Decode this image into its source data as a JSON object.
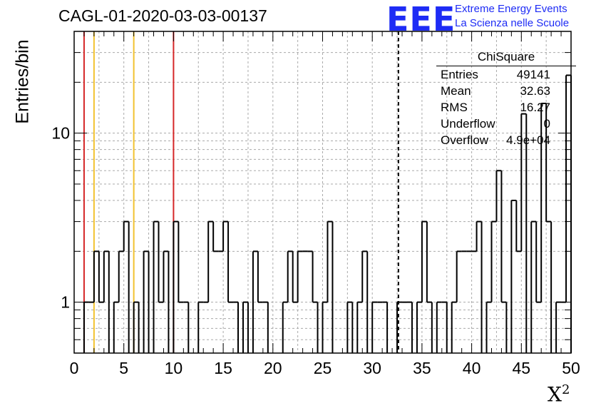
{
  "title": "CAGL-01-2020-03-03-00137",
  "logo": {
    "text": "EEE",
    "line1": "Extreme Energy Events",
    "line2": "La Scienza nelle Scuole",
    "color": "#1e2cf5"
  },
  "stats": {
    "name": "ChiSquare",
    "rows": [
      {
        "key": "Entries",
        "value": "49141"
      },
      {
        "key": "Mean",
        "value": "32.63"
      },
      {
        "key": "RMS",
        "value": "16.27"
      },
      {
        "key": "Underflow",
        "value": "0"
      },
      {
        "key": "Overflow",
        "value": "4.9e+04"
      }
    ]
  },
  "chart_data": {
    "type": "bar",
    "histogram": true,
    "title": "CAGL-01-2020-03-03-00137",
    "xlabel": "X",
    "xlabel_superscript": "2",
    "ylabel": "Entries/bin",
    "xlim": [
      0,
      50
    ],
    "ylim": [
      0.5,
      40
    ],
    "yscale": "log",
    "bin_width": 0.5,
    "x_ticks": [
      0,
      5,
      10,
      15,
      20,
      25,
      30,
      35,
      40,
      45,
      50
    ],
    "y_ticks": [
      1,
      10
    ],
    "grid": true,
    "bins": [
      {
        "x": 1.0,
        "y": 1
      },
      {
        "x": 1.5,
        "y": 1
      },
      {
        "x": 2.0,
        "y": 2
      },
      {
        "x": 2.5,
        "y": 1
      },
      {
        "x": 3.0,
        "y": 2
      },
      {
        "x": 4.0,
        "y": 1
      },
      {
        "x": 4.5,
        "y": 2
      },
      {
        "x": 5.0,
        "y": 3
      },
      {
        "x": 6.0,
        "y": 1
      },
      {
        "x": 7.0,
        "y": 2
      },
      {
        "x": 8.0,
        "y": 3
      },
      {
        "x": 8.5,
        "y": 1
      },
      {
        "x": 9.0,
        "y": 2
      },
      {
        "x": 10.0,
        "y": 3
      },
      {
        "x": 10.5,
        "y": 1
      },
      {
        "x": 11.0,
        "y": 1
      },
      {
        "x": 12.5,
        "y": 1
      },
      {
        "x": 13.0,
        "y": 1
      },
      {
        "x": 13.5,
        "y": 3
      },
      {
        "x": 14.0,
        "y": 2
      },
      {
        "x": 14.5,
        "y": 2
      },
      {
        "x": 15.0,
        "y": 3
      },
      {
        "x": 15.5,
        "y": 1
      },
      {
        "x": 16.0,
        "y": 1
      },
      {
        "x": 17.0,
        "y": 1
      },
      {
        "x": 18.0,
        "y": 2
      },
      {
        "x": 18.5,
        "y": 1
      },
      {
        "x": 19.0,
        "y": 1
      },
      {
        "x": 21.0,
        "y": 1
      },
      {
        "x": 21.5,
        "y": 2
      },
      {
        "x": 22.0,
        "y": 1
      },
      {
        "x": 22.5,
        "y": 2
      },
      {
        "x": 23.0,
        "y": 2
      },
      {
        "x": 23.5,
        "y": 2
      },
      {
        "x": 24.0,
        "y": 1
      },
      {
        "x": 25.0,
        "y": 1
      },
      {
        "x": 25.5,
        "y": 3
      },
      {
        "x": 27.5,
        "y": 1
      },
      {
        "x": 28.5,
        "y": 1
      },
      {
        "x": 29.0,
        "y": 2
      },
      {
        "x": 30.0,
        "y": 1
      },
      {
        "x": 30.5,
        "y": 1
      },
      {
        "x": 31.0,
        "y": 1
      },
      {
        "x": 32.5,
        "y": 1
      },
      {
        "x": 33.0,
        "y": 1
      },
      {
        "x": 33.5,
        "y": 1
      },
      {
        "x": 34.5,
        "y": 1
      },
      {
        "x": 35.0,
        "y": 3
      },
      {
        "x": 35.5,
        "y": 1
      },
      {
        "x": 36.5,
        "y": 1
      },
      {
        "x": 37.0,
        "y": 1
      },
      {
        "x": 38.0,
        "y": 1
      },
      {
        "x": 38.5,
        "y": 2
      },
      {
        "x": 39.0,
        "y": 2
      },
      {
        "x": 39.5,
        "y": 2
      },
      {
        "x": 40.0,
        "y": 2
      },
      {
        "x": 40.5,
        "y": 3
      },
      {
        "x": 41.5,
        "y": 1
      },
      {
        "x": 42.0,
        "y": 3
      },
      {
        "x": 42.5,
        "y": 6
      },
      {
        "x": 43.0,
        "y": 1
      },
      {
        "x": 44.0,
        "y": 4
      },
      {
        "x": 44.5,
        "y": 2
      },
      {
        "x": 45.0,
        "y": 13
      },
      {
        "x": 46.0,
        "y": 3
      },
      {
        "x": 46.5,
        "y": 1
      },
      {
        "x": 47.0,
        "y": 15
      },
      {
        "x": 47.5,
        "y": 3
      },
      {
        "x": 48.5,
        "y": 1
      },
      {
        "x": 49.0,
        "y": 1
      },
      {
        "x": 49.5,
        "y": 22
      }
    ],
    "vertical_lines": [
      {
        "x": 1,
        "color": "#d62728",
        "style": "solid"
      },
      {
        "x": 2,
        "color": "#f2c230",
        "style": "solid"
      },
      {
        "x": 6,
        "color": "#f2c230",
        "style": "solid"
      },
      {
        "x": 10,
        "color": "#d62728",
        "style": "solid"
      },
      {
        "x": 32.63,
        "color": "#000000",
        "style": "dashed"
      }
    ]
  }
}
